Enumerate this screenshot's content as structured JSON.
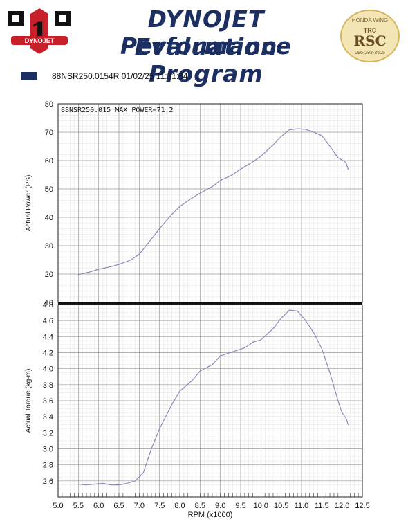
{
  "header": {
    "title_line1": "DYNOJET Performance",
    "title_line2": "Evaluation Program",
    "legend_label": "88NSR250.0154R  01/02/25 11:31:34",
    "legend_color": "#1b2f62",
    "logo_left_text": "DYNOJET",
    "logo_right_top": "HONDA WING",
    "logo_right_mid": "TRC",
    "logo_right_main": "RSC",
    "logo_right_phone": "096-293-3505"
  },
  "chart_data": [
    {
      "type": "line",
      "title": "",
      "annotation": "88NSR250.015  MAX POWER=71.2",
      "xlabel": "RPM (x1000)",
      "ylabel": "Actual Power (PS)",
      "xlim": [
        5.0,
        12.5
      ],
      "ylim": [
        10,
        80
      ],
      "x_ticks": [
        "5.0",
        "5.5",
        "6.0",
        "6.5",
        "7.0",
        "7.5",
        "8.0",
        "8.5",
        "9.0",
        "9.5",
        "10.0",
        "10.5",
        "11.0",
        "11.5",
        "12.0",
        "12.5"
      ],
      "y_ticks": [
        "10",
        "20",
        "30",
        "40",
        "50",
        "60",
        "70",
        "80"
      ],
      "grid": true,
      "series": [
        {
          "color": "#8a8ab8",
          "x": [
            5.5,
            5.8,
            6.0,
            6.3,
            6.5,
            6.8,
            7.0,
            7.2,
            7.5,
            7.8,
            8.0,
            8.3,
            8.5,
            8.8,
            9.0,
            9.3,
            9.5,
            9.8,
            10.0,
            10.3,
            10.5,
            10.7,
            10.9,
            11.1,
            11.3,
            11.5,
            11.7,
            11.9,
            12.0,
            12.1,
            12.15
          ],
          "y": [
            19.8,
            20.8,
            21.7,
            22.6,
            23.4,
            25.0,
            27.0,
            30.5,
            36.0,
            41.0,
            43.8,
            46.8,
            48.5,
            50.8,
            53.0,
            55.0,
            57.0,
            59.5,
            61.5,
            65.5,
            68.5,
            70.8,
            71.2,
            71.0,
            70.0,
            68.8,
            65.0,
            61.0,
            60.2,
            59.3,
            56.8
          ]
        }
      ]
    },
    {
      "type": "line",
      "title": "",
      "xlabel": "RPM (x1000)",
      "ylabel": "Actual Torque (kg-m)",
      "xlim": [
        5.0,
        12.5
      ],
      "ylim": [
        2.4,
        4.8
      ],
      "x_ticks": [
        "5.0",
        "5.5",
        "6.0",
        "6.5",
        "7.0",
        "7.5",
        "8.0",
        "8.5",
        "9.0",
        "9.5",
        "10.0",
        "10.5",
        "11.0",
        "11.5",
        "12.0",
        "12.5"
      ],
      "y_ticks": [
        "2.6",
        "2.8",
        "3.0",
        "3.2",
        "3.4",
        "3.6",
        "3.8",
        "4.0",
        "4.2",
        "4.4",
        "4.6",
        "4.8"
      ],
      "grid": true,
      "series": [
        {
          "color": "#8a8ab8",
          "x": [
            5.5,
            5.7,
            5.9,
            6.1,
            6.3,
            6.5,
            6.7,
            6.9,
            7.1,
            7.3,
            7.5,
            7.8,
            8.0,
            8.3,
            8.5,
            8.8,
            9.0,
            9.3,
            9.6,
            9.8,
            10.0,
            10.3,
            10.5,
            10.7,
            10.9,
            11.1,
            11.3,
            11.5,
            11.7,
            11.9,
            12.0,
            12.1,
            12.15
          ],
          "y": [
            2.56,
            2.55,
            2.56,
            2.57,
            2.55,
            2.55,
            2.57,
            2.6,
            2.7,
            3.0,
            3.25,
            3.55,
            3.72,
            3.85,
            3.97,
            4.05,
            4.16,
            4.21,
            4.26,
            4.33,
            4.36,
            4.5,
            4.63,
            4.73,
            4.72,
            4.6,
            4.45,
            4.25,
            3.95,
            3.6,
            3.45,
            3.38,
            3.3
          ]
        }
      ]
    }
  ]
}
